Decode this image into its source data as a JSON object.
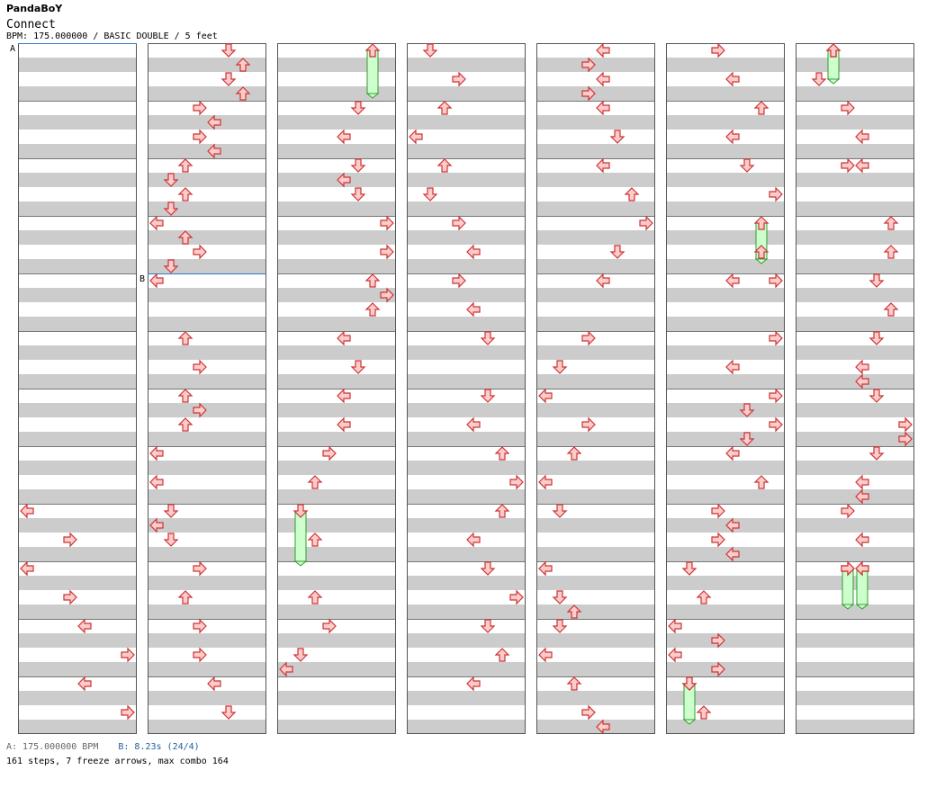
{
  "artist": "PandaBoY",
  "title": "Connect",
  "info": "BPM: 175.000000 / BASIC DOUBLE / 5 feet",
  "footer": {
    "bpm": "A: 175.000000 BPM",
    "stop": "B: 8.23s (24/4)",
    "summary": "161 steps, 7 freeze arrows, max combo 164"
  },
  "chart_data": {
    "type": "step-chart",
    "columns": 7,
    "measures_per_column": 12,
    "lanes": [
      "L1",
      "D1",
      "U1",
      "R1",
      "L2",
      "D2",
      "U2",
      "R2"
    ],
    "markers": [
      {
        "label": "A",
        "column": 0,
        "beat": 0
      },
      {
        "label": "B",
        "column": 1,
        "beat": 16
      }
    ],
    "colors": {
      "arrow_fill": "#ffcccc",
      "arrow_stroke": "#cc3333",
      "freeze_fill": "#ccffcc",
      "freeze_stroke": "#339933",
      "marker": "#3377cc"
    },
    "notes": [
      {
        "c": 0,
        "b": 32,
        "l": 0
      },
      {
        "c": 0,
        "b": 34,
        "l": 3
      },
      {
        "c": 0,
        "b": 36,
        "l": 0
      },
      {
        "c": 0,
        "b": 38,
        "l": 3
      },
      {
        "c": 0,
        "b": 40,
        "l": 4
      },
      {
        "c": 0,
        "b": 42,
        "l": 7
      },
      {
        "c": 0,
        "b": 44,
        "l": 4
      },
      {
        "c": 0,
        "b": 46,
        "l": 7
      },
      {
        "c": 1,
        "b": 0,
        "l": 5
      },
      {
        "c": 1,
        "b": 1,
        "l": 6
      },
      {
        "c": 1,
        "b": 2,
        "l": 5
      },
      {
        "c": 1,
        "b": 3,
        "l": 6
      },
      {
        "c": 1,
        "b": 4,
        "l": 3
      },
      {
        "c": 1,
        "b": 5,
        "l": 4
      },
      {
        "c": 1,
        "b": 6,
        "l": 3
      },
      {
        "c": 1,
        "b": 7,
        "l": 4
      },
      {
        "c": 1,
        "b": 8,
        "l": 2
      },
      {
        "c": 1,
        "b": 9,
        "l": 1
      },
      {
        "c": 1,
        "b": 10,
        "l": 2
      },
      {
        "c": 1,
        "b": 11,
        "l": 1
      },
      {
        "c": 1,
        "b": 12,
        "l": 0
      },
      {
        "c": 1,
        "b": 13,
        "l": 2
      },
      {
        "c": 1,
        "b": 14,
        "l": 3
      },
      {
        "c": 1,
        "b": 15,
        "l": 1
      },
      {
        "c": 1,
        "b": 16,
        "l": 0
      },
      {
        "c": 1,
        "b": 20,
        "l": 2
      },
      {
        "c": 1,
        "b": 22,
        "l": 3
      },
      {
        "c": 1,
        "b": 24,
        "l": 2
      },
      {
        "c": 1,
        "b": 25,
        "l": 3
      },
      {
        "c": 1,
        "b": 26,
        "l": 2
      },
      {
        "c": 1,
        "b": 28,
        "l": 0
      },
      {
        "c": 1,
        "b": 30,
        "l": 0
      },
      {
        "c": 1,
        "b": 32,
        "l": 1
      },
      {
        "c": 1,
        "b": 33,
        "l": 0
      },
      {
        "c": 1,
        "b": 34,
        "l": 1
      },
      {
        "c": 1,
        "b": 36,
        "l": 3
      },
      {
        "c": 1,
        "b": 38,
        "l": 2
      },
      {
        "c": 1,
        "b": 40,
        "l": 3
      },
      {
        "c": 1,
        "b": 42,
        "l": 3
      },
      {
        "c": 1,
        "b": 44,
        "l": 4
      },
      {
        "c": 1,
        "b": 46,
        "l": 5
      },
      {
        "c": 2,
        "b": 4,
        "l": 5
      },
      {
        "c": 2,
        "b": 6,
        "l": 4
      },
      {
        "c": 2,
        "b": 8,
        "l": 5
      },
      {
        "c": 2,
        "b": 9,
        "l": 4
      },
      {
        "c": 2,
        "b": 10,
        "l": 5
      },
      {
        "c": 2,
        "b": 12,
        "l": 7
      },
      {
        "c": 2,
        "b": 14,
        "l": 7
      },
      {
        "c": 2,
        "b": 16,
        "l": 6
      },
      {
        "c": 2,
        "b": 17,
        "l": 7
      },
      {
        "c": 2,
        "b": 18,
        "l": 6
      },
      {
        "c": 2,
        "b": 20,
        "l": 4
      },
      {
        "c": 2,
        "b": 22,
        "l": 5
      },
      {
        "c": 2,
        "b": 24,
        "l": 4
      },
      {
        "c": 2,
        "b": 26,
        "l": 4
      },
      {
        "c": 2,
        "b": 28,
        "l": 3
      },
      {
        "c": 2,
        "b": 30,
        "l": 2
      },
      {
        "c": 2,
        "b": 34,
        "l": 2
      },
      {
        "c": 2,
        "b": 38,
        "l": 2
      },
      {
        "c": 2,
        "b": 40,
        "l": 3
      },
      {
        "c": 2,
        "b": 42,
        "l": 1
      },
      {
        "c": 2,
        "b": 43,
        "l": 0
      },
      {
        "c": 3,
        "b": 0,
        "l": 1
      },
      {
        "c": 3,
        "b": 2,
        "l": 3
      },
      {
        "c": 3,
        "b": 4,
        "l": 2
      },
      {
        "c": 3,
        "b": 6,
        "l": 0
      },
      {
        "c": 3,
        "b": 8,
        "l": 2
      },
      {
        "c": 3,
        "b": 10,
        "l": 1
      },
      {
        "c": 3,
        "b": 12,
        "l": 3
      },
      {
        "c": 3,
        "b": 14,
        "l": 4
      },
      {
        "c": 3,
        "b": 16,
        "l": 3
      },
      {
        "c": 3,
        "b": 18,
        "l": 4
      },
      {
        "c": 3,
        "b": 20,
        "l": 5
      },
      {
        "c": 3,
        "b": 24,
        "l": 5
      },
      {
        "c": 3,
        "b": 26,
        "l": 4
      },
      {
        "c": 3,
        "b": 28,
        "l": 6
      },
      {
        "c": 3,
        "b": 30,
        "l": 7
      },
      {
        "c": 3,
        "b": 32,
        "l": 6
      },
      {
        "c": 3,
        "b": 34,
        "l": 4
      },
      {
        "c": 3,
        "b": 36,
        "l": 5
      },
      {
        "c": 3,
        "b": 38,
        "l": 7
      },
      {
        "c": 3,
        "b": 40,
        "l": 5
      },
      {
        "c": 3,
        "b": 42,
        "l": 6
      },
      {
        "c": 3,
        "b": 44,
        "l": 4
      },
      {
        "c": 4,
        "b": 0,
        "l": 4
      },
      {
        "c": 4,
        "b": 1,
        "l": 3
      },
      {
        "c": 4,
        "b": 2,
        "l": 4
      },
      {
        "c": 4,
        "b": 3,
        "l": 3
      },
      {
        "c": 4,
        "b": 4,
        "l": 4
      },
      {
        "c": 4,
        "b": 6,
        "l": 5
      },
      {
        "c": 4,
        "b": 8,
        "l": 4
      },
      {
        "c": 4,
        "b": 10,
        "l": 6
      },
      {
        "c": 4,
        "b": 12,
        "l": 7
      },
      {
        "c": 4,
        "b": 14,
        "l": 5
      },
      {
        "c": 4,
        "b": 16,
        "l": 4
      },
      {
        "c": 4,
        "b": 20,
        "l": 3
      },
      {
        "c": 4,
        "b": 22,
        "l": 1
      },
      {
        "c": 4,
        "b": 24,
        "l": 0
      },
      {
        "c": 4,
        "b": 26,
        "l": 3
      },
      {
        "c": 4,
        "b": 28,
        "l": 2
      },
      {
        "c": 4,
        "b": 30,
        "l": 0
      },
      {
        "c": 4,
        "b": 32,
        "l": 1
      },
      {
        "c": 4,
        "b": 36,
        "l": 0
      },
      {
        "c": 4,
        "b": 38,
        "l": 1
      },
      {
        "c": 4,
        "b": 39,
        "l": 2
      },
      {
        "c": 4,
        "b": 40,
        "l": 1
      },
      {
        "c": 4,
        "b": 42,
        "l": 0
      },
      {
        "c": 4,
        "b": 44,
        "l": 2
      },
      {
        "c": 4,
        "b": 46,
        "l": 3
      },
      {
        "c": 4,
        "b": 47,
        "l": 4
      },
      {
        "c": 5,
        "b": 0,
        "l": 3
      },
      {
        "c": 5,
        "b": 2,
        "l": 4
      },
      {
        "c": 5,
        "b": 4,
        "l": 6
      },
      {
        "c": 5,
        "b": 6,
        "l": 4
      },
      {
        "c": 5,
        "b": 8,
        "l": 5
      },
      {
        "c": 5,
        "b": 10,
        "l": 7
      },
      {
        "c": 5,
        "b": 14,
        "l": 6
      },
      {
        "c": 5,
        "b": 16,
        "l": 4
      },
      {
        "c": 5,
        "b": 16,
        "l": 7
      },
      {
        "c": 5,
        "b": 20,
        "l": 7
      },
      {
        "c": 5,
        "b": 22,
        "l": 4
      },
      {
        "c": 5,
        "b": 24,
        "l": 7
      },
      {
        "c": 5,
        "b": 25,
        "l": 5
      },
      {
        "c": 5,
        "b": 26,
        "l": 7
      },
      {
        "c": 5,
        "b": 27,
        "l": 5
      },
      {
        "c": 5,
        "b": 28,
        "l": 4
      },
      {
        "c": 5,
        "b": 30,
        "l": 6
      },
      {
        "c": 5,
        "b": 32,
        "l": 3
      },
      {
        "c": 5,
        "b": 33,
        "l": 4
      },
      {
        "c": 5,
        "b": 34,
        "l": 3
      },
      {
        "c": 5,
        "b": 35,
        "l": 4
      },
      {
        "c": 5,
        "b": 36,
        "l": 1
      },
      {
        "c": 5,
        "b": 38,
        "l": 2
      },
      {
        "c": 5,
        "b": 40,
        "l": 0
      },
      {
        "c": 5,
        "b": 41,
        "l": 3
      },
      {
        "c": 5,
        "b": 42,
        "l": 0
      },
      {
        "c": 5,
        "b": 43,
        "l": 3
      },
      {
        "c": 5,
        "b": 44,
        "l": 1
      },
      {
        "c": 5,
        "b": 46,
        "l": 2
      },
      {
        "c": 6,
        "b": 0,
        "l": 2
      },
      {
        "c": 6,
        "b": 2,
        "l": 1
      },
      {
        "c": 6,
        "b": 4,
        "l": 3
      },
      {
        "c": 6,
        "b": 6,
        "l": 4
      },
      {
        "c": 6,
        "b": 8,
        "l": 3
      },
      {
        "c": 6,
        "b": 8,
        "l": 4
      },
      {
        "c": 6,
        "b": 12,
        "l": 6
      },
      {
        "c": 6,
        "b": 14,
        "l": 6
      },
      {
        "c": 6,
        "b": 16,
        "l": 5
      },
      {
        "c": 6,
        "b": 18,
        "l": 6
      },
      {
        "c": 6,
        "b": 20,
        "l": 5
      },
      {
        "c": 6,
        "b": 22,
        "l": 4
      },
      {
        "c": 6,
        "b": 23,
        "l": 4
      },
      {
        "c": 6,
        "b": 24,
        "l": 5
      },
      {
        "c": 6,
        "b": 26,
        "l": 7
      },
      {
        "c": 6,
        "b": 27,
        "l": 7
      },
      {
        "c": 6,
        "b": 28,
        "l": 5
      },
      {
        "c": 6,
        "b": 30,
        "l": 4
      },
      {
        "c": 6,
        "b": 31,
        "l": 4
      },
      {
        "c": 6,
        "b": 32,
        "l": 3
      },
      {
        "c": 6,
        "b": 34,
        "l": 4
      },
      {
        "c": 6,
        "b": 36,
        "l": 3
      },
      {
        "c": 6,
        "b": 36,
        "l": 4
      }
    ],
    "freezes": [
      {
        "c": 2,
        "b": 0,
        "e": 3,
        "l": 6
      },
      {
        "c": 6,
        "b": 0,
        "e": 2,
        "l": 2
      },
      {
        "c": 5,
        "b": 12,
        "e": 14.5,
        "l": 6
      },
      {
        "c": 2,
        "b": 32,
        "e": 35.5,
        "l": 1
      },
      {
        "c": 6,
        "b": 36,
        "e": 38.5,
        "l": 3
      },
      {
        "c": 6,
        "b": 36,
        "e": 38.5,
        "l": 4
      },
      {
        "c": 5,
        "b": 44,
        "e": 46.5,
        "l": 1
      }
    ]
  }
}
